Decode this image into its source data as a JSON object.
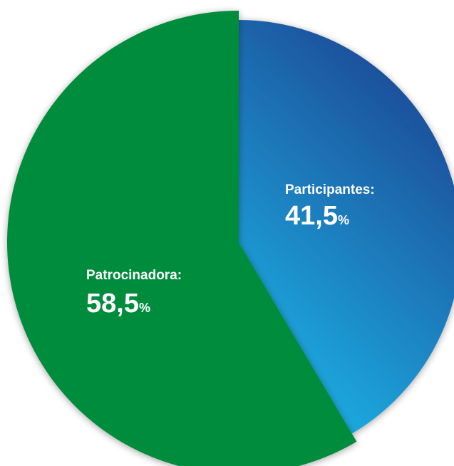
{
  "chart_data": {
    "type": "pie",
    "categories": [
      "Participantes:",
      "Patrocinadora:"
    ],
    "values": [
      41.5,
      58.5
    ],
    "value_labels": [
      "41,5%",
      "58,5%"
    ],
    "colors": [
      "#1b3f8f",
      "#008c3c"
    ]
  }
}
